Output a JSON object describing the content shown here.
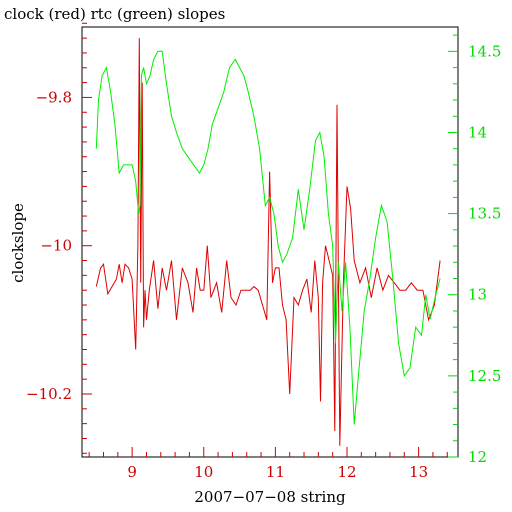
{
  "chart_data": {
    "type": "line",
    "title": "clock (red) rtc (green) slopes",
    "xlabel": "2007−07−08 string",
    "ylabel_left": "clockslope",
    "ylabel_right": "",
    "x_ticks": [
      9,
      10,
      11,
      12,
      13
    ],
    "xlim": [
      8.3,
      13.55
    ],
    "ylim_left": [
      -10.285,
      -9.705
    ],
    "y_ticks_left": [
      -9.8,
      -10,
      -10.2
    ],
    "y_tick_labels_left": [
      "−9.8",
      "−10",
      "−10.2"
    ],
    "ylim_right": [
      12.0,
      14.65
    ],
    "y_ticks_right": [
      12,
      12.5,
      13,
      13.5,
      14,
      14.5
    ],
    "y_tick_labels_right": [
      "12",
      "12.5",
      "13",
      "13.5",
      "14",
      "14.5"
    ],
    "colors": {
      "clock": "#dd0000",
      "rtc": "#00ee00",
      "axis_left": "#cc0000",
      "axis_right": "#00dd00",
      "frame": "#000000"
    },
    "grid": false,
    "series": [
      {
        "name": "clock",
        "axis": "left",
        "color": "#dd0000",
        "x": [
          8.5,
          8.56,
          8.6,
          8.66,
          8.72,
          8.78,
          8.82,
          8.86,
          8.9,
          8.95,
          9.0,
          9.05,
          9.08,
          9.1,
          9.12,
          9.14,
          9.16,
          9.18,
          9.2,
          9.24,
          9.3,
          9.36,
          9.42,
          9.48,
          9.55,
          9.62,
          9.7,
          9.78,
          9.85,
          9.9,
          9.95,
          10.0,
          10.05,
          10.1,
          10.18,
          10.25,
          10.32,
          10.38,
          10.45,
          10.52,
          10.58,
          10.65,
          10.7,
          10.76,
          10.82,
          10.88,
          10.92,
          10.96,
          11.0,
          11.05,
          11.1,
          11.15,
          11.2,
          11.26,
          11.32,
          11.38,
          11.44,
          11.5,
          11.55,
          11.6,
          11.63,
          11.66,
          11.7,
          11.75,
          11.8,
          11.83,
          11.86,
          11.9,
          11.95,
          12.0,
          12.05,
          12.1,
          12.18,
          12.26,
          12.34,
          12.42,
          12.5,
          12.58,
          12.66,
          12.74,
          12.82,
          12.9,
          12.98,
          13.06,
          13.14,
          13.22,
          13.3
        ],
        "values": [
          -10.055,
          -10.03,
          -10.025,
          -10.065,
          -10.055,
          -10.045,
          -10.025,
          -10.05,
          -10.025,
          -10.03,
          -10.045,
          -10.14,
          -10.0,
          -9.72,
          -10.05,
          -9.78,
          -10.11,
          -10.06,
          -10.1,
          -10.06,
          -10.02,
          -10.085,
          -10.03,
          -10.06,
          -10.02,
          -10.1,
          -10.03,
          -10.05,
          -10.09,
          -10.03,
          -10.06,
          -10.06,
          -10.0,
          -10.07,
          -10.05,
          -10.09,
          -10.02,
          -10.07,
          -10.08,
          -10.06,
          -10.06,
          -10.06,
          -10.055,
          -10.06,
          -10.08,
          -10.1,
          -9.9,
          -10.05,
          -10.03,
          -10.03,
          -10.08,
          -10.1,
          -10.2,
          -10.07,
          -10.08,
          -10.06,
          -10.045,
          -10.09,
          -10.02,
          -10.07,
          -10.21,
          -10.05,
          -10.0,
          -10.02,
          -10.04,
          -10.25,
          -9.81,
          -10.27,
          -10.05,
          -9.92,
          -9.95,
          -10.02,
          -10.05,
          -10.03,
          -10.07,
          -10.03,
          -10.06,
          -10.04,
          -10.05,
          -10.06,
          -10.06,
          -10.05,
          -10.06,
          -10.06,
          -10.1,
          -10.08,
          -10.02
        ]
      },
      {
        "name": "rtc",
        "axis": "right",
        "color": "#00ee00",
        "x": [
          8.5,
          8.53,
          8.58,
          8.64,
          8.7,
          8.76,
          8.82,
          8.88,
          8.94,
          9.0,
          9.05,
          9.09,
          9.11,
          9.13,
          9.16,
          9.2,
          9.25,
          9.3,
          9.36,
          9.42,
          9.48,
          9.55,
          9.62,
          9.7,
          9.78,
          9.86,
          9.94,
          10.0,
          10.06,
          10.12,
          10.2,
          10.28,
          10.36,
          10.44,
          10.5,
          10.56,
          10.62,
          10.7,
          10.78,
          10.86,
          10.92,
          10.98,
          11.04,
          11.1,
          11.16,
          11.24,
          11.32,
          11.4,
          11.48,
          11.56,
          11.62,
          11.68,
          11.74,
          11.8,
          11.84,
          11.88,
          11.93,
          11.98,
          12.04,
          12.1,
          12.16,
          12.24,
          12.32,
          12.4,
          12.48,
          12.56,
          12.64,
          12.72,
          12.8,
          12.88,
          12.96,
          13.04,
          13.1,
          13.16,
          13.24,
          13.3
        ],
        "values": [
          13.9,
          14.2,
          14.35,
          14.4,
          14.25,
          14.05,
          13.75,
          13.8,
          13.8,
          13.8,
          13.7,
          13.5,
          13.55,
          14.35,
          14.4,
          14.3,
          14.35,
          14.45,
          14.5,
          14.5,
          14.3,
          14.1,
          14.0,
          13.9,
          13.85,
          13.8,
          13.75,
          13.8,
          13.9,
          14.05,
          14.15,
          14.25,
          14.4,
          14.45,
          14.4,
          14.35,
          14.25,
          14.1,
          13.9,
          13.55,
          13.6,
          13.5,
          13.3,
          13.2,
          13.25,
          13.35,
          13.65,
          13.4,
          13.65,
          13.95,
          14.0,
          13.85,
          13.5,
          13.3,
          12.7,
          13.2,
          12.9,
          13.2,
          12.8,
          12.2,
          12.5,
          12.9,
          13.1,
          13.35,
          13.55,
          13.45,
          13.1,
          12.7,
          12.5,
          12.55,
          12.8,
          12.75,
          13.0,
          12.85,
          13.0,
          13.1
        ]
      }
    ]
  }
}
